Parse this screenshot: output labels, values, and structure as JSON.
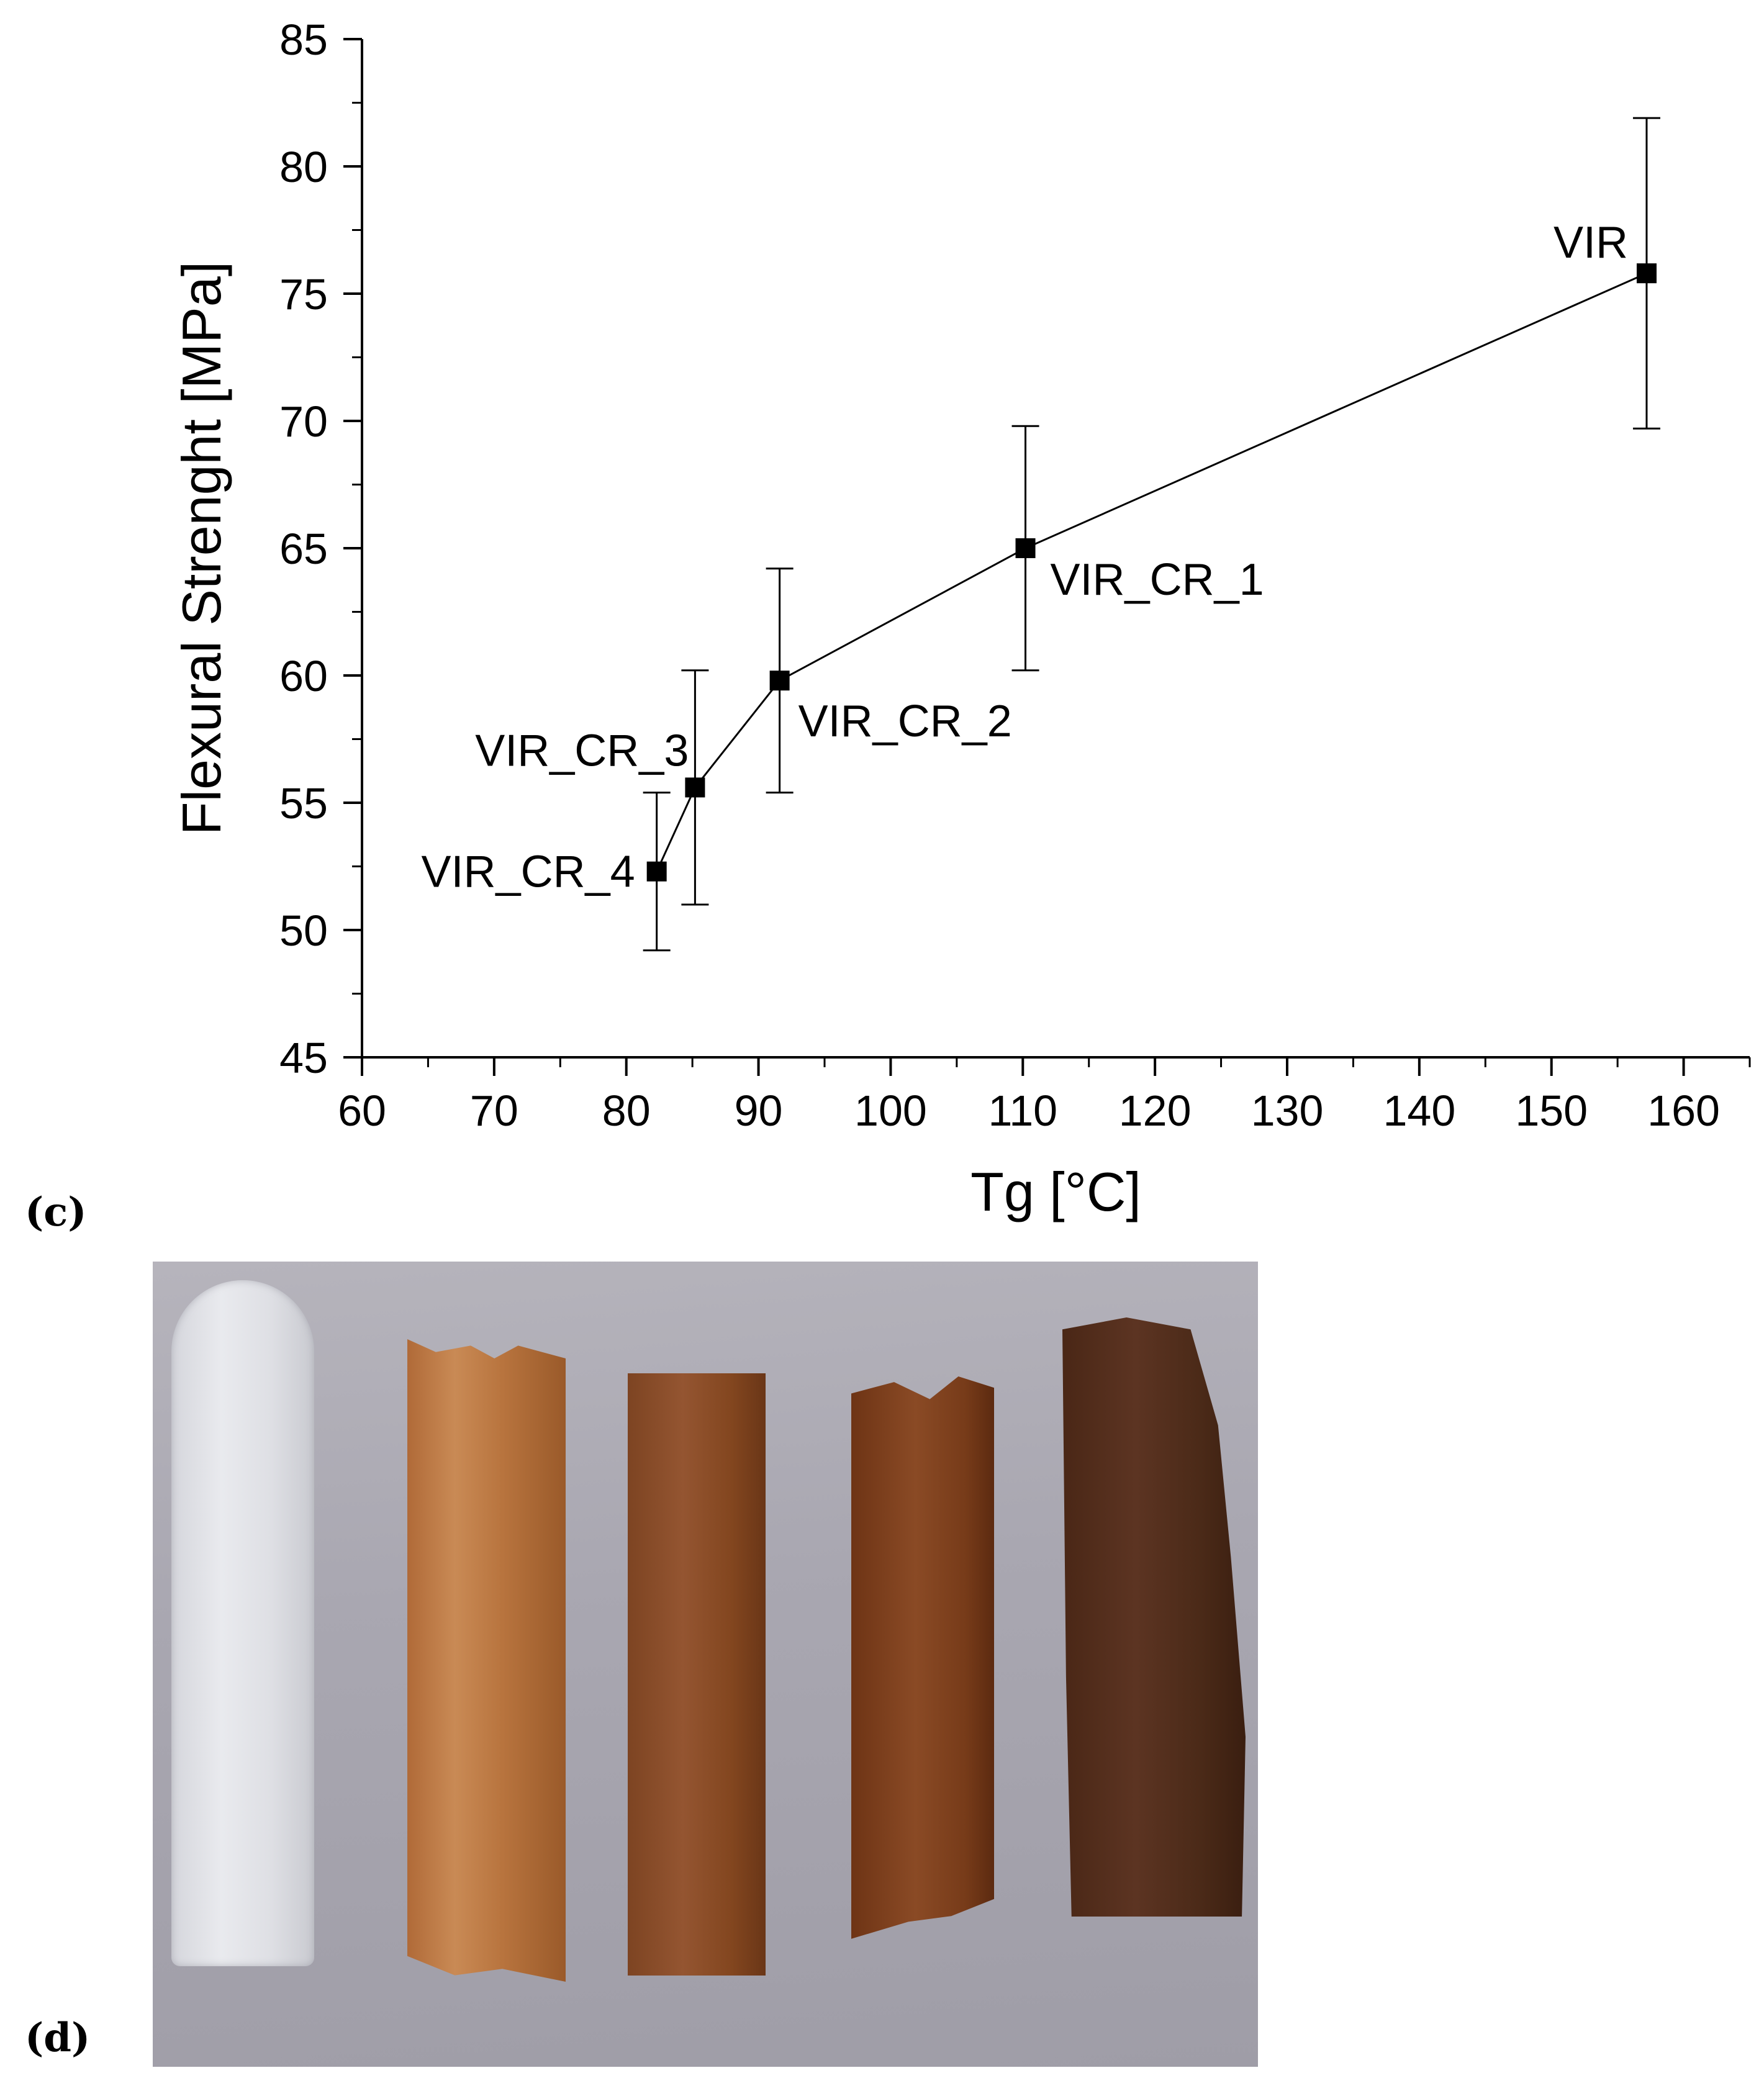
{
  "panels": {
    "c_label": "(c)",
    "d_label": "(d)"
  },
  "chart_data": {
    "type": "line",
    "title": "",
    "xlabel": "Tg [°C]",
    "ylabel": "Flexural Strenght [MPa]",
    "xlim": [
      60,
      165
    ],
    "ylim": [
      45,
      85
    ],
    "xticks": [
      60,
      70,
      80,
      90,
      100,
      110,
      120,
      130,
      140,
      150,
      160
    ],
    "yticks": [
      45,
      50,
      55,
      60,
      65,
      70,
      75,
      80,
      85
    ],
    "grid": false,
    "legend": "none",
    "series": [
      {
        "marker": "square",
        "color": "#000000",
        "points": [
          {
            "label": "VIR_CR_4",
            "x": 82.3,
            "y": 52.3,
            "err_low": 49.2,
            "err_high": 55.4
          },
          {
            "label": "VIR_CR_3",
            "x": 85.2,
            "y": 55.6,
            "err_low": 51.0,
            "err_high": 60.2
          },
          {
            "label": "VIR_CR_2",
            "x": 91.6,
            "y": 59.8,
            "err_low": 55.4,
            "err_high": 64.2
          },
          {
            "label": "VIR_CR_1",
            "x": 110.2,
            "y": 65.0,
            "err_low": 60.2,
            "err_high": 69.8
          },
          {
            "label": "VIR",
            "x": 157.2,
            "y": 75.8,
            "err_low": 69.7,
            "err_high": 81.9
          }
        ]
      }
    ]
  },
  "photo": {
    "description_visible": "",
    "strip_count": 5
  }
}
